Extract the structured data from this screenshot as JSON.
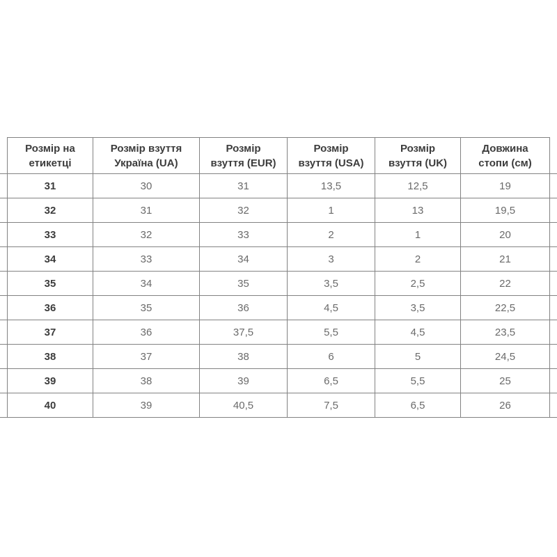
{
  "table": {
    "border_color": "#828282",
    "header_text_color": "#3c3c3c",
    "data_text_color": "#6a6a6a",
    "headers": [
      "Розмір на\nетикетці",
      "Розмір взуття\nУкраїна (UA)",
      "Розмір\nвзуття (EUR)",
      "Розмір\nвзуття (USA)",
      "Розмір\nвзуття (UK)",
      "Довжина\nстопи (см)"
    ],
    "rows": [
      [
        "31",
        "30",
        "31",
        "13,5",
        "12,5",
        "19"
      ],
      [
        "32",
        "31",
        "32",
        "1",
        "13",
        "19,5"
      ],
      [
        "33",
        "32",
        "33",
        "2",
        "1",
        "20"
      ],
      [
        "34",
        "33",
        "34",
        "3",
        "2",
        "21"
      ],
      [
        "35",
        "34",
        "35",
        "3,5",
        "2,5",
        "22"
      ],
      [
        "36",
        "35",
        "36",
        "4,5",
        "3,5",
        "22,5"
      ],
      [
        "37",
        "36",
        "37,5",
        "5,5",
        "4,5",
        "23,5"
      ],
      [
        "38",
        "37",
        "38",
        "6",
        "5",
        "24,5"
      ],
      [
        "39",
        "38",
        "39",
        "6,5",
        "5,5",
        "25"
      ],
      [
        "40",
        "39",
        "40,5",
        "7,5",
        "6,5",
        "26"
      ]
    ]
  },
  "chart_data": {
    "type": "table",
    "title": "",
    "columns": [
      "Розмір на етикетці",
      "Розмір взуття Україна (UA)",
      "Розмір взуття (EUR)",
      "Розмір взуття (USA)",
      "Розмір взуття (UK)",
      "Довжина стопи (см)"
    ],
    "rows": [
      [
        "31",
        "30",
        "31",
        "13,5",
        "12,5",
        "19"
      ],
      [
        "32",
        "31",
        "32",
        "1",
        "13",
        "19,5"
      ],
      [
        "33",
        "32",
        "33",
        "2",
        "1",
        "20"
      ],
      [
        "34",
        "33",
        "34",
        "3",
        "2",
        "21"
      ],
      [
        "35",
        "34",
        "35",
        "3,5",
        "2,5",
        "22"
      ],
      [
        "36",
        "35",
        "36",
        "4,5",
        "3,5",
        "22,5"
      ],
      [
        "37",
        "36",
        "37,5",
        "5,5",
        "4,5",
        "23,5"
      ],
      [
        "38",
        "37",
        "38",
        "6",
        "5",
        "24,5"
      ],
      [
        "39",
        "38",
        "39",
        "6,5",
        "5,5",
        "25"
      ],
      [
        "40",
        "39",
        "40,5",
        "7,5",
        "6,5",
        "26"
      ]
    ]
  }
}
